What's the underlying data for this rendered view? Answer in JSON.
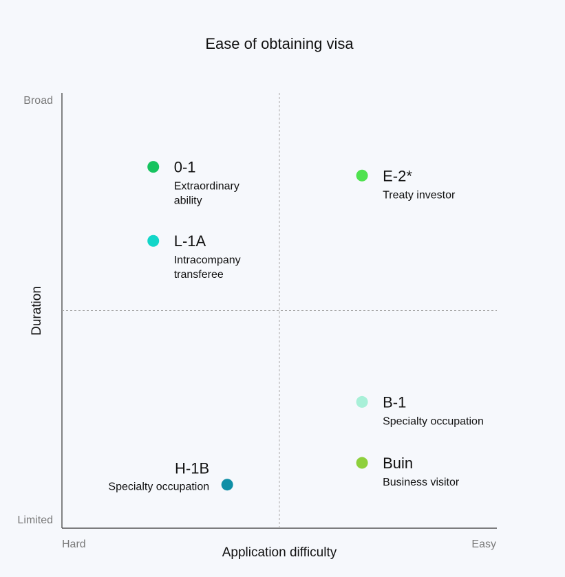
{
  "chart_data": {
    "type": "scatter",
    "title": "Ease of obtaining visa",
    "xlabel": "Application difficulty",
    "ylabel": "Duration",
    "x_range_labels": {
      "min": "Hard",
      "max": "Easy"
    },
    "y_range_labels": {
      "min": "Limited",
      "max": "Broad"
    },
    "xlim": [
      0,
      1
    ],
    "ylim": [
      0,
      1
    ],
    "quadrant_dividers": {
      "x": 0.5,
      "y": 0.5
    },
    "points": [
      {
        "code": "0-1",
        "description": [
          "Extraordinary",
          "ability"
        ],
        "x": 0.21,
        "y": 0.83,
        "color": "#16c35f",
        "label_side": "right"
      },
      {
        "code": "E-2*",
        "description": [
          "Treaty investor"
        ],
        "x": 0.69,
        "y": 0.81,
        "color": "#4fe24f",
        "label_side": "right"
      },
      {
        "code": "L-1A",
        "description": [
          "Intracompany",
          "transferee"
        ],
        "x": 0.21,
        "y": 0.66,
        "color": "#12d6c8",
        "label_side": "right"
      },
      {
        "code": "B-1",
        "description": [
          "Specialty occupation"
        ],
        "x": 0.69,
        "y": 0.29,
        "color": "#a8f0d8",
        "label_side": "right"
      },
      {
        "code": "Buin",
        "description": [
          "Business visitor"
        ],
        "x": 0.69,
        "y": 0.15,
        "color": "#8ed03c",
        "label_side": "right"
      },
      {
        "code": "H-1B",
        "description": [
          "Specialty occupation"
        ],
        "x": 0.38,
        "y": 0.1,
        "color": "#0f8fa6",
        "label_side": "left"
      }
    ]
  }
}
